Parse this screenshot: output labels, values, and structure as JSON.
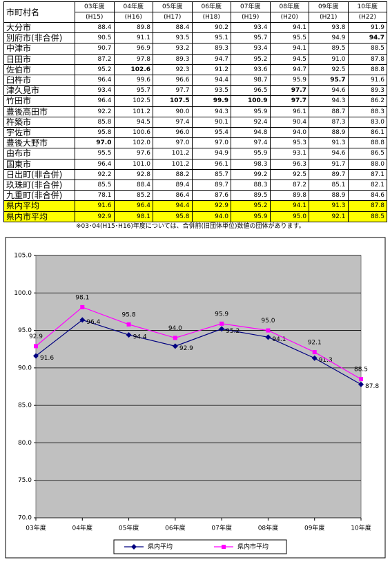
{
  "table": {
    "header": [
      "市町村名",
      "03年度",
      "04年度",
      "05年度",
      "06年度",
      "07年度",
      "08年度",
      "09年度",
      "10年度"
    ],
    "subheader": [
      "(H15)",
      "(H16)",
      "(H17)",
      "(H18)",
      "(H19)",
      "(H20)",
      "(H21)",
      "(H22)"
    ],
    "rows": [
      [
        "大分市",
        "88.4",
        "89.8",
        "88.4",
        "90.2",
        "93.4",
        "94.1",
        "93.8",
        "91.9"
      ],
      [
        "別府市(非合併)",
        "90.5",
        "91.1",
        "93.5",
        "95.1",
        "95.7",
        "95.5",
        "94.9",
        "94.7"
      ],
      [
        "中津市",
        "90.7",
        "96.9",
        "93.2",
        "89.3",
        "93.4",
        "94.1",
        "89.5",
        "88.5"
      ],
      [
        "日田市",
        "87.2",
        "97.8",
        "89.3",
        "94.7",
        "95.2",
        "94.5",
        "91.0",
        "87.8"
      ],
      [
        "佐伯市",
        "95.2",
        "102.6",
        "92.3",
        "91.2",
        "93.6",
        "94.7",
        "92.5",
        "88.8"
      ],
      [
        "臼杵市",
        "96.4",
        "99.6",
        "96.6",
        "94.4",
        "98.7",
        "95.9",
        "95.7",
        "91.6"
      ],
      [
        "津久見市",
        "93.4",
        "95.7",
        "97.7",
        "93.5",
        "96.5",
        "97.7",
        "94.6",
        "89.3"
      ],
      [
        "竹田市",
        "96.4",
        "102.5",
        "107.5",
        "99.9",
        "100.9",
        "97.7",
        "94.3",
        "86.2"
      ],
      [
        "豊後高田市",
        "92.2",
        "101.2",
        "90.0",
        "94.3",
        "95.9",
        "96.1",
        "88.7",
        "88.3"
      ],
      [
        "杵築市",
        "85.8",
        "94.5",
        "97.4",
        "90.1",
        "92.4",
        "90.4",
        "87.3",
        "83.0"
      ],
      [
        "宇佐市",
        "95.8",
        "100.6",
        "96.0",
        "95.4",
        "94.8",
        "94.0",
        "88.9",
        "86.1"
      ],
      [
        "豊後大野市",
        "97.0",
        "102.0",
        "97.0",
        "97.0",
        "97.4",
        "95.3",
        "91.3",
        "88.8"
      ],
      [
        "由布市",
        "95.5",
        "97.6",
        "101.2",
        "94.9",
        "95.9",
        "93.1",
        "94.6",
        "86.5"
      ],
      [
        "国東市",
        "96.4",
        "101.0",
        "101.2",
        "96.1",
        "98.3",
        "96.3",
        "91.7",
        "88.0"
      ],
      [
        "日出町(非合併)",
        "92.2",
        "92.8",
        "88.2",
        "85.7",
        "99.2",
        "92.5",
        "89.7",
        "87.1"
      ],
      [
        "玖珠町(非合併)",
        "85.5",
        "88.4",
        "89.4",
        "89.7",
        "88.3",
        "87.2",
        "85.1",
        "82.1"
      ],
      [
        "九重町(非合併)",
        "78.1",
        "85.2",
        "86.4",
        "87.6",
        "89.5",
        "89.8",
        "88.9",
        "84.6"
      ],
      [
        "県内平均",
        "91.6",
        "96.4",
        "94.4",
        "92.9",
        "95.2",
        "94.1",
        "91.3",
        "87.8"
      ],
      [
        "県内市平均",
        "92.9",
        "98.1",
        "95.8",
        "94.0",
        "95.9",
        "95.0",
        "92.1",
        "88.5"
      ]
    ],
    "highlight_rows": [
      17,
      18
    ],
    "highlight_color": "#ffff00",
    "bold_cells": [
      [
        1,
        8
      ],
      [
        4,
        2
      ],
      [
        5,
        7
      ],
      [
        6,
        6
      ],
      [
        7,
        3
      ],
      [
        7,
        4
      ],
      [
        7,
        5
      ],
      [
        7,
        6
      ],
      [
        11,
        1
      ]
    ]
  },
  "note": "※03･04(H15･H16)年度については、合併前(旧団体単位)数値の団体があります。",
  "chart_data": {
    "type": "line",
    "categories": [
      "03年度",
      "04年度",
      "05年度",
      "06年度",
      "07年度",
      "08年度",
      "09年度",
      "10年度"
    ],
    "series": [
      {
        "name": "県内平均",
        "color": "#000080",
        "marker": "diamond",
        "values": [
          91.6,
          96.4,
          94.4,
          92.9,
          95.2,
          94.1,
          91.3,
          87.8
        ]
      },
      {
        "name": "県内市平均",
        "color": "#ff00ff",
        "marker": "square",
        "values": [
          92.9,
          98.1,
          95.8,
          94.0,
          95.9,
          95.0,
          92.1,
          88.5
        ],
        "value_labels": [
          "92.9",
          "98.1",
          "95.8",
          "94.0",
          "95.9",
          "95.0",
          "92.1",
          "88.5"
        ]
      }
    ],
    "ylim": [
      70,
      105
    ],
    "yticks": [
      {
        "value": 70,
        "label": "70.0"
      },
      {
        "value": 75,
        "label": "75.0"
      },
      {
        "value": 80,
        "label": "80.0"
      },
      {
        "value": 85,
        "label": "85.0"
      },
      {
        "value": 90,
        "label": "90.0"
      },
      {
        "value": 95,
        "label": "95.0"
      },
      {
        "value": 100,
        "label": "100.0"
      },
      {
        "value": 105,
        "label": "105.0"
      }
    ],
    "grid": true,
    "plot_background": "#c0c0c0"
  }
}
